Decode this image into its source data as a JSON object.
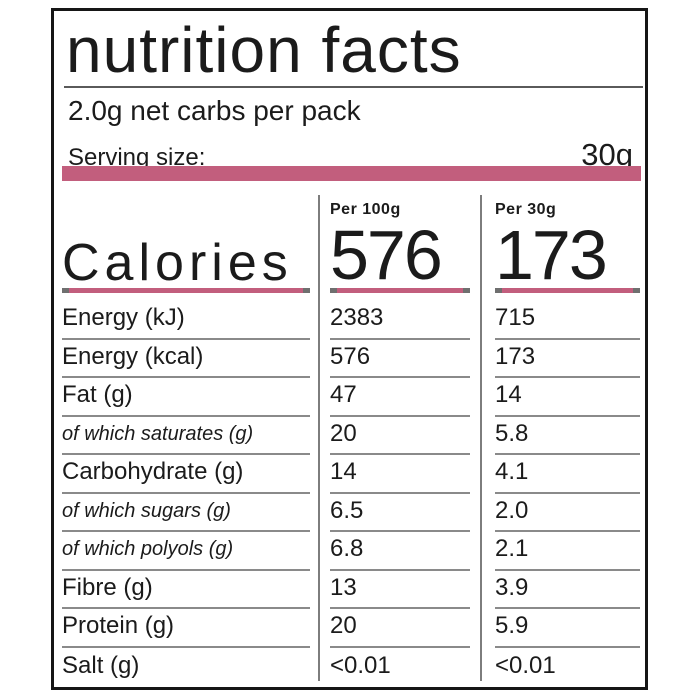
{
  "title": "nutrition facts",
  "subtitle": "2.0g net carbs per pack",
  "serving": {
    "label": "Serving size:",
    "value": "30g"
  },
  "colors": {
    "accent": "#c25e7d",
    "line_gray": "#8a8a8a",
    "text": "#1b1b1b",
    "border": "#161616"
  },
  "calories": {
    "label": "Calories",
    "columns": [
      {
        "header": "Per 100g",
        "value": "576"
      },
      {
        "header": "Per 30g",
        "value": "173"
      }
    ]
  },
  "rows": [
    {
      "label": "Energy (kJ)",
      "per100": "2383",
      "per30": "715"
    },
    {
      "label": "Energy (kcal)",
      "per100": "576",
      "per30": "173"
    },
    {
      "label": "Fat (g)",
      "per100": "47",
      "per30": "14"
    },
    {
      "label": "of which saturates (g)",
      "per100": "20",
      "per30": "5.8"
    },
    {
      "label": "Carbohydrate (g)",
      "per100": "14",
      "per30": "4.1"
    },
    {
      "label": "of which sugars (g)",
      "per100": "6.5",
      "per30": "2.0"
    },
    {
      "label": "of which polyols (g)",
      "per100": "6.8",
      "per30": "2.1"
    },
    {
      "label": "Fibre (g)",
      "per100": "13",
      "per30": "3.9"
    },
    {
      "label": "Protein (g)",
      "per100": "20",
      "per30": "5.9"
    },
    {
      "label": "Salt (g)",
      "per100": "<0.01",
      "per30": "<0.01"
    }
  ]
}
